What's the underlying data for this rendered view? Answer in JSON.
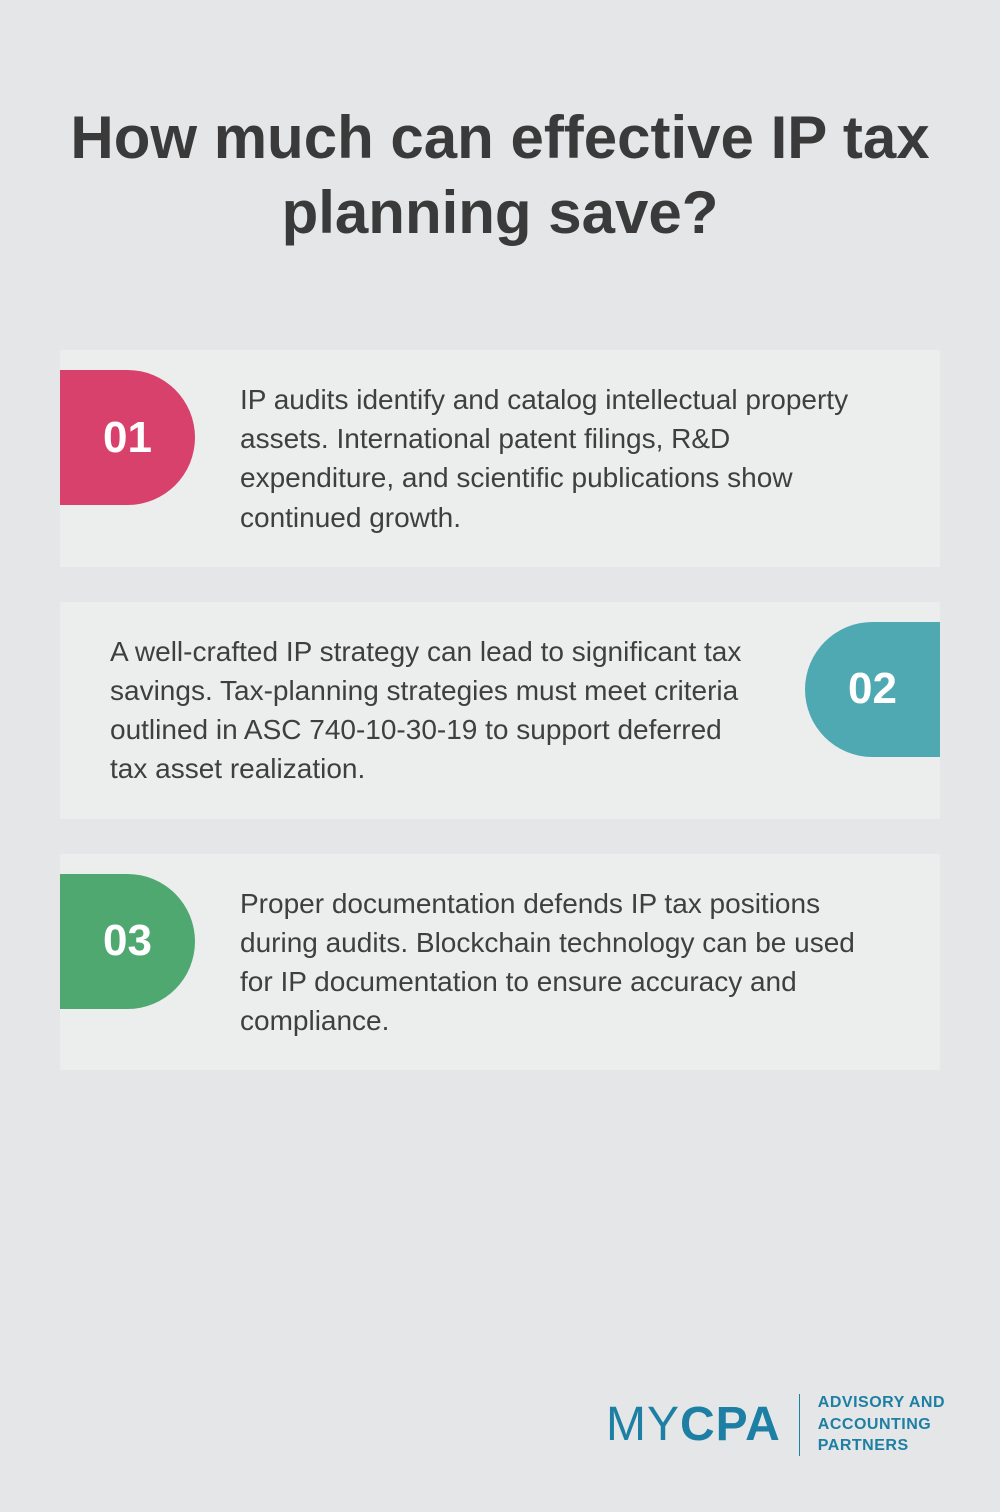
{
  "title": "How much can effective IP tax planning save?",
  "cards": [
    {
      "num": "01",
      "color": "#d8416b",
      "side": "left",
      "text": "IP audits identify and catalog intellectual property assets. International patent filings, R&D expenditure, and scientific publications show continued growth."
    },
    {
      "num": "02",
      "color": "#4fa9b3",
      "side": "right",
      "text": "A well-crafted IP strategy can lead to significant tax savings. Tax-planning strategies must meet criteria outlined in ASC 740-10-30-19 to support deferred tax asset realization."
    },
    {
      "num": "03",
      "color": "#4fa870",
      "side": "left",
      "text": "Proper documentation defends IP tax positions during audits. Blockchain technology can be used for IP documentation to ensure accuracy and compliance."
    }
  ],
  "colors": {
    "page_bg": "#e5e6e7",
    "card_bg": "#eceded",
    "text": "#3a3a3a",
    "brand": "#1c7fa3"
  },
  "typography": {
    "title_fontsize": 60,
    "body_fontsize": 28,
    "badge_fontsize": 44
  },
  "footer": {
    "logo_my": "MY",
    "logo_cpa": "CPA",
    "tagline_line1": "ADVISORY AND",
    "tagline_line2": "ACCOUNTING",
    "tagline_line3": "PARTNERS"
  }
}
